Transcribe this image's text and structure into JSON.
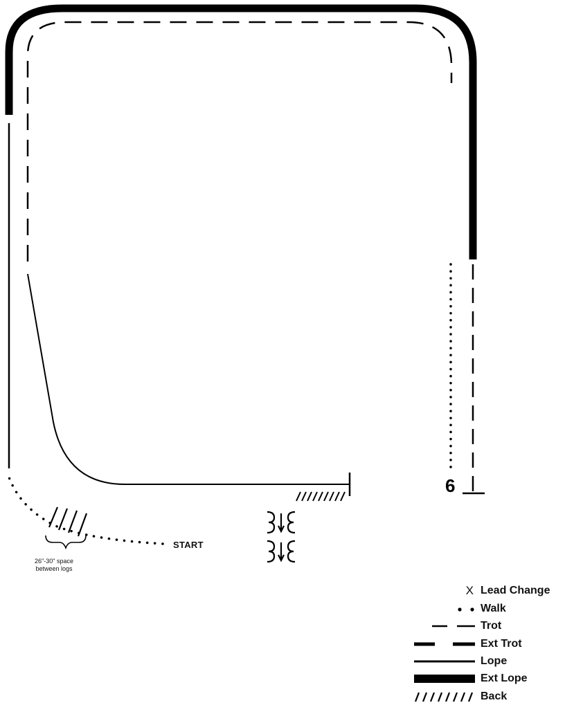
{
  "pattern": {
    "start_label": "START",
    "logs_note_line1": "26\"-30\" space",
    "logs_note_line2": "between logs",
    "marker_six": "6"
  },
  "legend": {
    "items": [
      {
        "key": "lead-change",
        "symbol": "X",
        "label": "Lead Change"
      },
      {
        "key": "walk",
        "label": "Walk"
      },
      {
        "key": "trot",
        "label": "Trot"
      },
      {
        "key": "ext-trot",
        "label": "Ext Trot"
      },
      {
        "key": "lope",
        "label": "Lope"
      },
      {
        "key": "ext-lope",
        "label": "Ext Lope"
      },
      {
        "key": "back",
        "label": "Back"
      }
    ]
  }
}
